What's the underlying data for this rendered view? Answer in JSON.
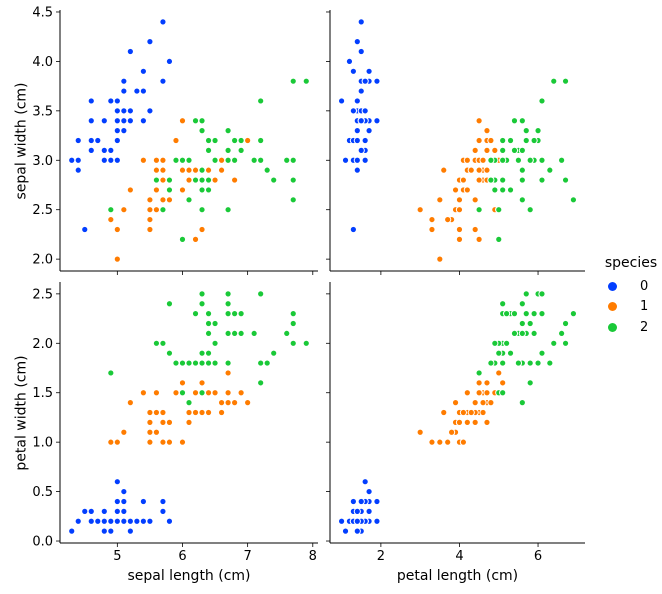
{
  "legend": {
    "title": "species",
    "entries": [
      {
        "label": "0",
        "color": "#023eff"
      },
      {
        "label": "1",
        "color": "#ff7c00"
      },
      {
        "label": "2",
        "color": "#1ac938"
      }
    ]
  },
  "chart_data": {
    "type": "scatter",
    "kind": "pairplot",
    "hue_field": "species",
    "fields": [
      "sepal length (cm)",
      "sepal width (cm)",
      "petal length (cm)",
      "petal width (cm)"
    ],
    "style": {
      "marker_radius": 3.1,
      "marker_edge_color": "#ffffff",
      "spine_color": "#000000",
      "tick_length": 4,
      "grid": false,
      "legend_position": "center right"
    },
    "subplots": [
      {
        "row": 0,
        "col": 0,
        "x_index": 0,
        "y_index": 1,
        "xlabel": "sepal length (cm)",
        "ylabel": "sepal width (cm)",
        "xlim": [
          4.12,
          8.08
        ],
        "ylim": [
          1.88,
          4.52
        ],
        "xticks": [
          5,
          6,
          7,
          8
        ],
        "xtick_labels": [
          "5",
          "6",
          "7",
          "8"
        ],
        "show_xtick_labels": false,
        "yticks": [
          2.0,
          2.5,
          3.0,
          3.5,
          4.0,
          4.5
        ],
        "ytick_labels": [
          "2.0",
          "2.5",
          "3.0",
          "3.5",
          "4.0",
          "4.5"
        ],
        "show_ytick_labels": true
      },
      {
        "row": 0,
        "col": 1,
        "x_index": 2,
        "y_index": 1,
        "xlabel": "petal length (cm)",
        "ylabel": "sepal width (cm)",
        "xlim": [
          0.705,
          7.195
        ],
        "ylim": [
          1.88,
          4.52
        ],
        "xticks": [
          2,
          4,
          6
        ],
        "xtick_labels": [
          "2",
          "4",
          "6"
        ],
        "show_xtick_labels": false,
        "yticks": [
          2.0,
          2.5,
          3.0,
          3.5,
          4.0,
          4.5
        ],
        "ytick_labels": [
          "2.0",
          "2.5",
          "3.0",
          "3.5",
          "4.0",
          "4.5"
        ],
        "show_ytick_labels": false
      },
      {
        "row": 1,
        "col": 0,
        "x_index": 0,
        "y_index": 3,
        "xlabel": "sepal length (cm)",
        "ylabel": "petal width (cm)",
        "xlim": [
          4.12,
          8.08
        ],
        "ylim": [
          -0.02,
          2.62
        ],
        "xticks": [
          5,
          6,
          7,
          8
        ],
        "xtick_labels": [
          "5",
          "6",
          "7",
          "8"
        ],
        "show_xtick_labels": true,
        "yticks": [
          0.0,
          0.5,
          1.0,
          1.5,
          2.0,
          2.5
        ],
        "ytick_labels": [
          "0.0",
          "0.5",
          "1.0",
          "1.5",
          "2.0",
          "2.5"
        ],
        "show_ytick_labels": true
      },
      {
        "row": 1,
        "col": 1,
        "x_index": 2,
        "y_index": 3,
        "xlabel": "petal length (cm)",
        "ylabel": "petal width (cm)",
        "xlim": [
          0.705,
          7.195
        ],
        "ylim": [
          -0.02,
          2.62
        ],
        "xticks": [
          2,
          4,
          6
        ],
        "xtick_labels": [
          "2",
          "4",
          "6"
        ],
        "show_xtick_labels": true,
        "yticks": [
          0.0,
          0.5,
          1.0,
          1.5,
          2.0,
          2.5
        ],
        "ytick_labels": [
          "0.0",
          "0.5",
          "1.0",
          "1.5",
          "2.0",
          "2.5"
        ],
        "show_ytick_labels": false
      }
    ],
    "series": [
      {
        "name": "0",
        "color": "#023eff",
        "points": [
          [
            5.1,
            3.5,
            1.4,
            0.2
          ],
          [
            4.9,
            3.0,
            1.4,
            0.2
          ],
          [
            4.7,
            3.2,
            1.3,
            0.2
          ],
          [
            4.6,
            3.1,
            1.5,
            0.2
          ],
          [
            5.0,
            3.6,
            1.4,
            0.2
          ],
          [
            5.4,
            3.9,
            1.7,
            0.4
          ],
          [
            4.6,
            3.4,
            1.4,
            0.3
          ],
          [
            5.0,
            3.4,
            1.5,
            0.2
          ],
          [
            4.4,
            2.9,
            1.4,
            0.2
          ],
          [
            4.9,
            3.1,
            1.5,
            0.1
          ],
          [
            5.4,
            3.7,
            1.5,
            0.2
          ],
          [
            4.8,
            3.4,
            1.6,
            0.2
          ],
          [
            4.8,
            3.0,
            1.4,
            0.1
          ],
          [
            4.3,
            3.0,
            1.1,
            0.1
          ],
          [
            5.8,
            4.0,
            1.2,
            0.2
          ],
          [
            5.7,
            4.4,
            1.5,
            0.4
          ],
          [
            5.4,
            3.9,
            1.3,
            0.4
          ],
          [
            5.1,
            3.5,
            1.4,
            0.3
          ],
          [
            5.7,
            3.8,
            1.7,
            0.3
          ],
          [
            5.1,
            3.8,
            1.5,
            0.3
          ],
          [
            5.4,
            3.4,
            1.7,
            0.2
          ],
          [
            5.1,
            3.7,
            1.5,
            0.4
          ],
          [
            4.6,
            3.6,
            1.0,
            0.2
          ],
          [
            5.1,
            3.3,
            1.7,
            0.5
          ],
          [
            4.8,
            3.4,
            1.9,
            0.2
          ],
          [
            5.0,
            3.0,
            1.6,
            0.2
          ],
          [
            5.0,
            3.4,
            1.6,
            0.4
          ],
          [
            5.2,
            3.5,
            1.5,
            0.2
          ],
          [
            5.2,
            3.4,
            1.4,
            0.2
          ],
          [
            4.7,
            3.2,
            1.6,
            0.2
          ],
          [
            4.8,
            3.1,
            1.6,
            0.2
          ],
          [
            5.4,
            3.4,
            1.5,
            0.4
          ],
          [
            5.2,
            4.1,
            1.5,
            0.1
          ],
          [
            5.5,
            4.2,
            1.4,
            0.2
          ],
          [
            4.9,
            3.1,
            1.5,
            0.2
          ],
          [
            5.0,
            3.2,
            1.2,
            0.2
          ],
          [
            5.5,
            3.5,
            1.3,
            0.2
          ],
          [
            4.9,
            3.6,
            1.4,
            0.1
          ],
          [
            4.4,
            3.0,
            1.3,
            0.2
          ],
          [
            5.1,
            3.4,
            1.5,
            0.2
          ],
          [
            5.0,
            3.5,
            1.3,
            0.3
          ],
          [
            4.5,
            2.3,
            1.3,
            0.3
          ],
          [
            4.4,
            3.2,
            1.3,
            0.2
          ],
          [
            5.0,
            3.5,
            1.6,
            0.6
          ],
          [
            5.1,
            3.8,
            1.9,
            0.4
          ],
          [
            4.8,
            3.0,
            1.4,
            0.3
          ],
          [
            5.1,
            3.8,
            1.6,
            0.2
          ],
          [
            4.6,
            3.2,
            1.4,
            0.2
          ],
          [
            5.3,
            3.7,
            1.5,
            0.2
          ],
          [
            5.0,
            3.3,
            1.4,
            0.2
          ]
        ]
      },
      {
        "name": "1",
        "color": "#ff7c00",
        "points": [
          [
            7.0,
            3.2,
            4.7,
            1.4
          ],
          [
            6.4,
            3.2,
            4.5,
            1.5
          ],
          [
            6.9,
            3.1,
            4.9,
            1.5
          ],
          [
            5.5,
            2.3,
            4.0,
            1.3
          ],
          [
            6.5,
            2.8,
            4.6,
            1.5
          ],
          [
            5.7,
            2.8,
            4.5,
            1.3
          ],
          [
            6.3,
            3.3,
            4.7,
            1.6
          ],
          [
            4.9,
            2.4,
            3.3,
            1.0
          ],
          [
            6.6,
            2.9,
            4.6,
            1.3
          ],
          [
            5.2,
            2.7,
            3.9,
            1.4
          ],
          [
            5.0,
            2.0,
            3.5,
            1.0
          ],
          [
            5.9,
            3.0,
            4.2,
            1.5
          ],
          [
            6.0,
            2.2,
            4.0,
            1.0
          ],
          [
            6.1,
            2.9,
            4.7,
            1.4
          ],
          [
            5.6,
            2.9,
            3.6,
            1.3
          ],
          [
            6.7,
            3.1,
            4.4,
            1.4
          ],
          [
            5.6,
            3.0,
            4.5,
            1.5
          ],
          [
            5.8,
            2.7,
            4.1,
            1.0
          ],
          [
            6.2,
            2.2,
            4.5,
            1.5
          ],
          [
            5.6,
            2.5,
            3.9,
            1.1
          ],
          [
            5.9,
            3.2,
            4.8,
            1.8
          ],
          [
            6.1,
            2.8,
            4.0,
            1.3
          ],
          [
            6.3,
            2.5,
            4.9,
            1.5
          ],
          [
            6.1,
            2.8,
            4.7,
            1.2
          ],
          [
            6.4,
            2.9,
            4.3,
            1.3
          ],
          [
            6.6,
            3.0,
            4.4,
            1.4
          ],
          [
            6.8,
            2.8,
            4.8,
            1.4
          ],
          [
            6.7,
            3.0,
            5.0,
            1.7
          ],
          [
            6.0,
            2.9,
            4.5,
            1.5
          ],
          [
            5.7,
            2.6,
            3.5,
            1.0
          ],
          [
            5.5,
            2.4,
            3.8,
            1.1
          ],
          [
            5.5,
            2.4,
            3.7,
            1.0
          ],
          [
            5.8,
            2.7,
            3.9,
            1.2
          ],
          [
            6.0,
            2.7,
            5.1,
            1.6
          ],
          [
            5.4,
            3.0,
            4.5,
            1.5
          ],
          [
            6.0,
            3.4,
            4.5,
            1.6
          ],
          [
            6.7,
            3.1,
            4.7,
            1.5
          ],
          [
            6.3,
            2.3,
            4.4,
            1.3
          ],
          [
            5.6,
            3.0,
            4.1,
            1.3
          ],
          [
            5.5,
            2.5,
            4.0,
            1.3
          ],
          [
            5.5,
            2.6,
            4.4,
            1.2
          ],
          [
            6.1,
            3.0,
            4.6,
            1.4
          ],
          [
            5.8,
            2.6,
            4.0,
            1.2
          ],
          [
            5.0,
            2.3,
            3.3,
            1.0
          ],
          [
            5.6,
            2.7,
            4.2,
            1.3
          ],
          [
            5.7,
            3.0,
            4.2,
            1.2
          ],
          [
            5.7,
            2.9,
            4.2,
            1.3
          ],
          [
            6.2,
            2.9,
            4.3,
            1.3
          ],
          [
            5.1,
            2.5,
            3.0,
            1.1
          ],
          [
            5.7,
            2.8,
            4.1,
            1.3
          ]
        ]
      },
      {
        "name": "2",
        "color": "#1ac938",
        "points": [
          [
            6.3,
            3.3,
            6.0,
            2.5
          ],
          [
            5.8,
            2.7,
            5.1,
            1.9
          ],
          [
            7.1,
            3.0,
            5.9,
            2.1
          ],
          [
            6.3,
            2.9,
            5.6,
            1.8
          ],
          [
            6.5,
            3.0,
            5.8,
            2.2
          ],
          [
            7.6,
            3.0,
            6.6,
            2.1
          ],
          [
            4.9,
            2.5,
            4.5,
            1.7
          ],
          [
            7.3,
            2.9,
            6.3,
            1.8
          ],
          [
            6.7,
            2.5,
            5.8,
            1.8
          ],
          [
            7.2,
            3.6,
            6.1,
            2.5
          ],
          [
            6.5,
            3.2,
            5.1,
            2.0
          ],
          [
            6.4,
            2.7,
            5.3,
            1.9
          ],
          [
            6.8,
            3.0,
            5.5,
            2.1
          ],
          [
            5.7,
            2.5,
            5.0,
            2.0
          ],
          [
            5.8,
            2.8,
            5.1,
            2.4
          ],
          [
            6.4,
            3.2,
            5.3,
            2.3
          ],
          [
            6.5,
            3.0,
            5.5,
            1.8
          ],
          [
            7.7,
            3.8,
            6.7,
            2.2
          ],
          [
            7.7,
            2.6,
            6.9,
            2.3
          ],
          [
            6.0,
            2.2,
            5.0,
            1.5
          ],
          [
            6.9,
            3.2,
            5.7,
            2.3
          ],
          [
            5.6,
            2.8,
            4.9,
            2.0
          ],
          [
            7.7,
            2.8,
            6.7,
            2.0
          ],
          [
            6.3,
            2.7,
            4.9,
            1.8
          ],
          [
            6.7,
            3.3,
            5.7,
            2.1
          ],
          [
            7.2,
            3.2,
            6.0,
            1.8
          ],
          [
            6.2,
            2.8,
            4.8,
            1.8
          ],
          [
            6.1,
            3.0,
            4.9,
            1.8
          ],
          [
            6.4,
            2.8,
            5.6,
            2.1
          ],
          [
            7.2,
            3.0,
            5.8,
            1.6
          ],
          [
            7.4,
            2.8,
            6.1,
            1.9
          ],
          [
            7.9,
            3.8,
            6.4,
            2.0
          ],
          [
            6.4,
            2.8,
            5.6,
            2.2
          ],
          [
            6.3,
            2.8,
            5.1,
            1.5
          ],
          [
            6.1,
            2.6,
            5.6,
            1.4
          ],
          [
            7.7,
            3.0,
            6.1,
            2.3
          ],
          [
            6.3,
            3.4,
            5.6,
            2.4
          ],
          [
            6.4,
            3.1,
            5.5,
            1.8
          ],
          [
            6.0,
            3.0,
            4.8,
            1.8
          ],
          [
            6.9,
            3.1,
            5.4,
            2.1
          ],
          [
            6.7,
            3.1,
            5.6,
            2.4
          ],
          [
            6.9,
            3.1,
            5.1,
            2.3
          ],
          [
            5.8,
            2.7,
            5.1,
            1.9
          ],
          [
            6.8,
            3.2,
            5.9,
            2.3
          ],
          [
            6.7,
            3.3,
            5.7,
            2.5
          ],
          [
            6.7,
            3.0,
            5.2,
            2.3
          ],
          [
            6.3,
            2.5,
            5.0,
            1.9
          ],
          [
            6.5,
            3.0,
            5.2,
            2.0
          ],
          [
            6.2,
            3.4,
            5.4,
            2.3
          ],
          [
            5.9,
            3.0,
            5.1,
            1.8
          ]
        ]
      }
    ]
  }
}
